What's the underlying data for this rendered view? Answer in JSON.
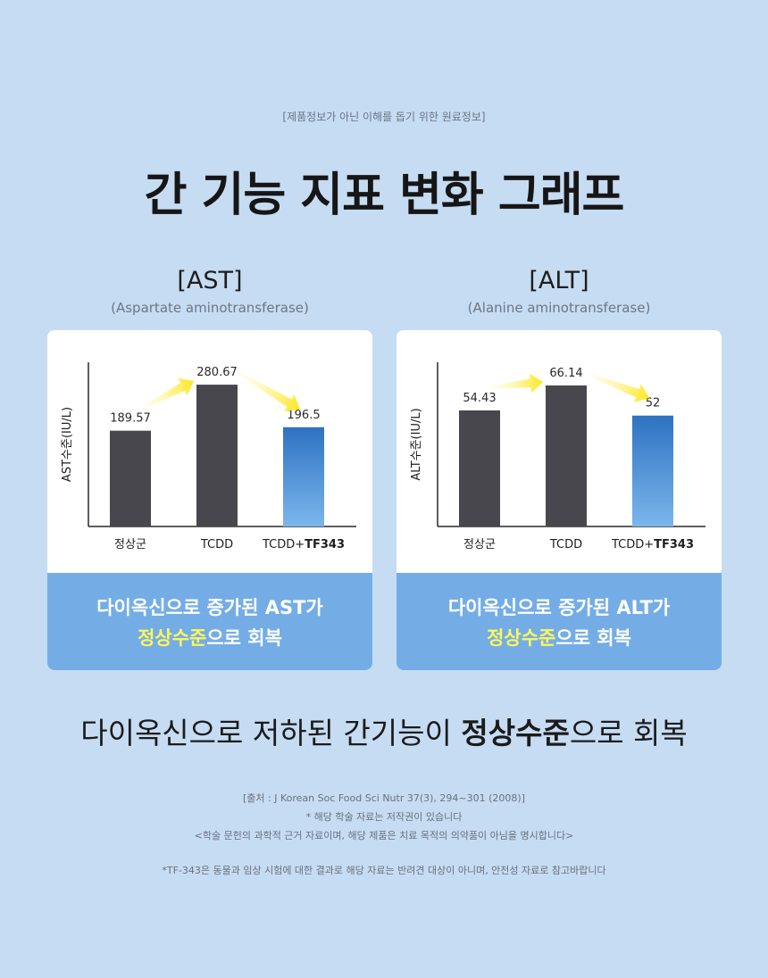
{
  "disclaimer_top": "[제품정보가 아닌 이해를 돕기 위한 원료정보]",
  "title": "간 기능 지표 변화 그래프",
  "charts": [
    {
      "label": "[AST]",
      "sublabel": "(Aspartate aminotransferase)",
      "caption_line1": "다이옥신으로 증가된 AST가",
      "caption_line2_highlight": "정상수준",
      "caption_line2_rest": "으로 회복"
    },
    {
      "label": "[ALT]",
      "sublabel": "(Alanine aminotransferase)",
      "caption_line1": "다이옥신으로 증가된 ALT가",
      "caption_line2_highlight": "정상수준",
      "caption_line2_rest": "으로 회복"
    }
  ],
  "chart_data": [
    {
      "type": "bar",
      "ylabel": "AST수준(IU/L)",
      "categories": [
        "정상군",
        "TCDD",
        "TCDD+TF343"
      ],
      "category_parts": [
        [
          "정상군",
          ""
        ],
        [
          "TCDD",
          ""
        ],
        [
          "TCDD+",
          "TF343"
        ]
      ],
      "values": [
        189.57,
        280.67,
        196.5
      ],
      "value_labels": [
        "189.57",
        "280.67",
        "196.5"
      ],
      "ylim": [
        0,
        325
      ],
      "grid": false,
      "bar_colors": [
        "#48474d",
        "#48474d",
        "gradient:#2e72c2-#7bb6ec"
      ]
    },
    {
      "type": "bar",
      "ylabel": "ALT수준(IU/L)",
      "categories": [
        "정상군",
        "TCDD",
        "TCDD+TF343"
      ],
      "category_parts": [
        [
          "정상군",
          ""
        ],
        [
          "TCDD",
          ""
        ],
        [
          "TCDD+",
          "TF343"
        ]
      ],
      "values": [
        54.43,
        66.14,
        52
      ],
      "value_labels": [
        "54.43",
        "66.14",
        "52"
      ],
      "ylim": [
        0,
        77
      ],
      "grid": false,
      "bar_colors": [
        "#48474d",
        "#48474d",
        "gradient:#2e72c2-#7bb6ec"
      ]
    }
  ],
  "summary_prefix": "다이옥신으로 저하된 간기능이 ",
  "summary_bold": "정상수준",
  "summary_suffix": "으로 회복",
  "references": {
    "source": "[출처 :  J Korean Soc Food Sci Nutr 37(3), 294~301 (2008)]",
    "copyright": "* 해당 학술 자료는 저작권이 있습니다",
    "notice": "<학술 문헌의 과학적 근거 자료이며, 해당 제품은 치료 목적의 의약품이 아님을 명시합니다>",
    "footnote": "*TF-343은 동물과 임상 시험에 대한 결과로 해당 자료는 반려견 대상이 아니며, 안전성 자료로 참고바랍니다"
  }
}
